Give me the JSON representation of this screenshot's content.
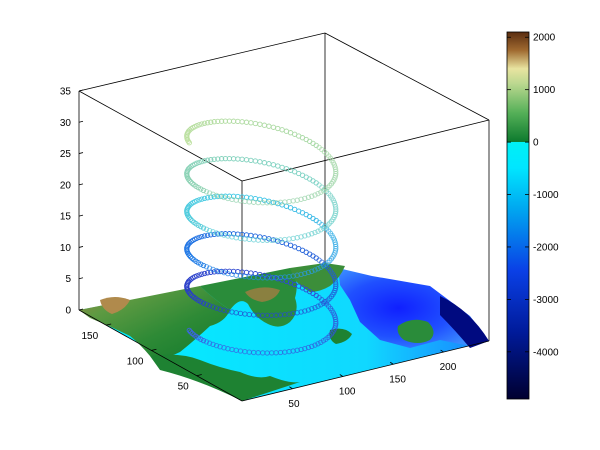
{
  "chart_data": {
    "type": "scatter",
    "view": "3d",
    "title": "",
    "xlabel": "",
    "ylabel": "",
    "zlabel": "",
    "grid": false,
    "x_ticks": [
      50,
      100,
      150,
      200
    ],
    "y_ticks": [
      50,
      100,
      150
    ],
    "z_ticks": [
      0,
      5,
      10,
      15,
      20,
      25,
      30,
      35
    ],
    "xlim": [
      0,
      245
    ],
    "ylim": [
      0,
      180
    ],
    "zlim": [
      0,
      35
    ],
    "surface": {
      "description": "terrain/bathymetry elevation map at z = 0",
      "colormap": "elevation (dark navy to cyan below 0, green to brown above 0)"
    },
    "helix": {
      "center_x": 100,
      "center_y": 90,
      "radius": 55,
      "z_start": 0,
      "z_end": 30,
      "turns": 5,
      "marker": "o"
    },
    "colorbar": {
      "ticks": [
        2000,
        1000,
        0,
        -1000,
        -2000,
        -3000,
        -4000
      ],
      "range": [
        -4900,
        2100
      ],
      "location": "right",
      "colors": {
        "deep": "#000030",
        "mid_deep": "#0a2ed6",
        "shallow": "#00e6ff",
        "low_land": "#0d7a2e",
        "mid_land": "#e8e4a0",
        "high_land": "#5a2d10"
      }
    }
  }
}
